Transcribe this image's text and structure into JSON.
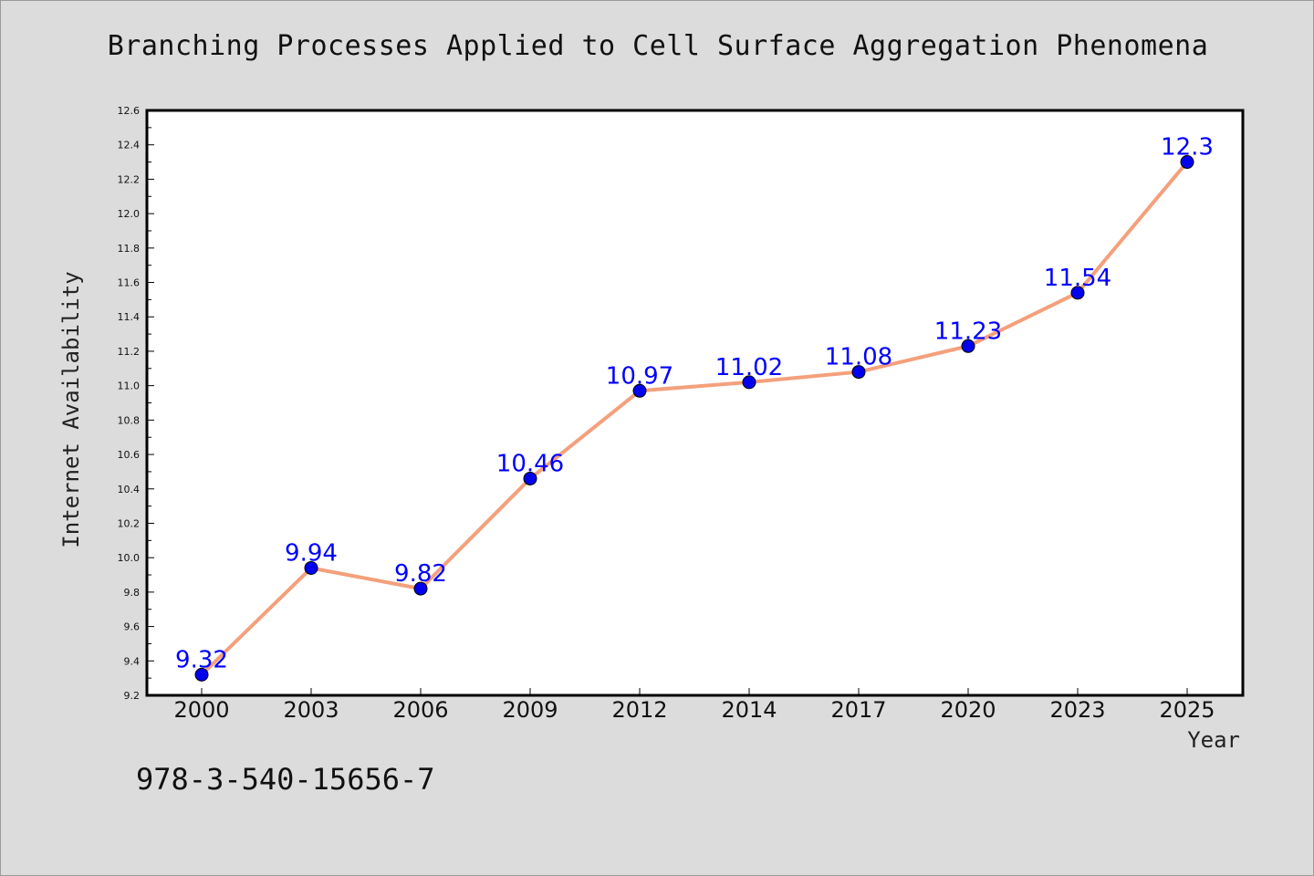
{
  "chart_data": {
    "type": "line",
    "title": "Branching Processes Applied to Cell Surface Aggregation Phenomena",
    "xlabel": "Year",
    "ylabel": "Internet Availability",
    "categories": [
      "2000",
      "2003",
      "2006",
      "2009",
      "2012",
      "2014",
      "2017",
      "2020",
      "2023",
      "2025"
    ],
    "values": [
      9.32,
      9.94,
      9.82,
      10.46,
      10.97,
      11.02,
      11.08,
      11.23,
      11.54,
      12.3
    ],
    "data_labels": [
      "9.32",
      "9.94",
      "9.82",
      "10.46",
      "10.97",
      "11.02",
      "11.08",
      "11.23",
      "11.54",
      "12.3"
    ],
    "ylim": [
      9.2,
      12.6
    ],
    "yticks": [
      "9.2",
      "9.4",
      "9.6",
      "9.8",
      "10.0",
      "10.2",
      "10.4",
      "10.6",
      "10.8",
      "11.0",
      "11.2",
      "11.4",
      "11.6",
      "11.8",
      "12.0",
      "12.2",
      "12.4",
      "12.6"
    ],
    "grid": false,
    "line_color": "#f4a07c",
    "marker_color": "#0000ee",
    "label_color": "#0000ff"
  },
  "footer": {
    "isbn": "978-3-540-15656-7"
  }
}
